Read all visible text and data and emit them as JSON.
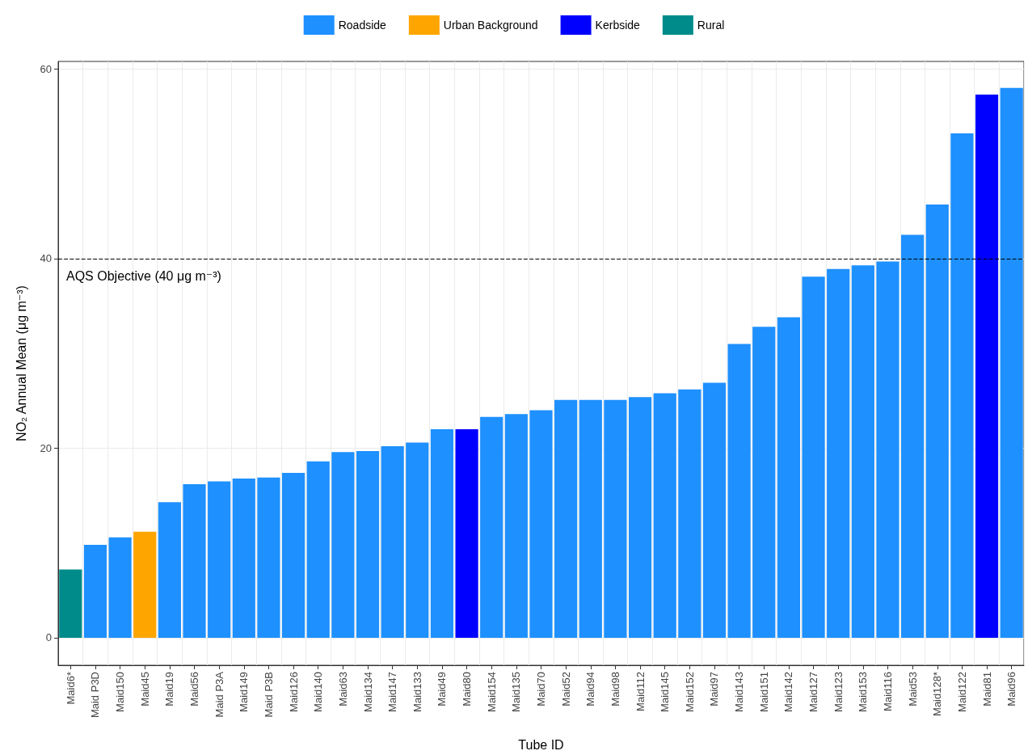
{
  "chart_data": {
    "type": "bar",
    "xlabel": "Tube ID",
    "ylabel": "NO₂ Annual Mean (μg m⁻³)",
    "categories": [
      "Maid6*",
      "Maid P3D",
      "Maid150",
      "Maid45",
      "Maid19",
      "Maid56",
      "Maid P3A",
      "Maid149",
      "Maid P3B",
      "Maid126",
      "Maid140",
      "Maid63",
      "Maid134",
      "Maid147",
      "Maid133",
      "Maid49",
      "Maid80",
      "Maid154",
      "Maid135",
      "Maid70",
      "Maid52",
      "Maid94",
      "Maid98",
      "Maid112",
      "Maid145",
      "Maid152",
      "Maid97",
      "Maid143",
      "Maid151",
      "Maid142",
      "Maid127",
      "Maid123",
      "Maid153",
      "Maid116",
      "Maid53",
      "Maid128*",
      "Maid122",
      "Maid81",
      "Maid96"
    ],
    "series": [
      {
        "name": "Roadside",
        "color": "#1e90ff",
        "values": [
          null,
          9.8,
          10.6,
          null,
          14.3,
          16.2,
          16.5,
          16.8,
          16.9,
          17.4,
          18.6,
          19.6,
          19.7,
          20.2,
          20.6,
          22.0,
          null,
          23.3,
          23.6,
          24.0,
          25.1,
          25.1,
          25.1,
          25.4,
          25.8,
          26.2,
          26.9,
          31.0,
          32.8,
          33.8,
          38.1,
          38.9,
          39.3,
          39.7,
          42.5,
          45.7,
          53.2,
          null,
          58.0
        ]
      },
      {
        "name": "Urban Background",
        "color": "#ffa500",
        "values": [
          null,
          null,
          null,
          11.2,
          null,
          null,
          null,
          null,
          null,
          null,
          null,
          null,
          null,
          null,
          null,
          null,
          null,
          null,
          null,
          null,
          null,
          null,
          null,
          null,
          null,
          null,
          null,
          null,
          null,
          null,
          null,
          null,
          null,
          null,
          null,
          null,
          null,
          null,
          null
        ]
      },
      {
        "name": "Kerbside",
        "color": "#0000ff",
        "values": [
          null,
          null,
          null,
          null,
          null,
          null,
          null,
          null,
          null,
          null,
          null,
          null,
          null,
          null,
          null,
          null,
          22.0,
          null,
          null,
          null,
          null,
          null,
          null,
          null,
          null,
          null,
          null,
          null,
          null,
          null,
          null,
          null,
          null,
          null,
          null,
          null,
          null,
          57.3,
          null
        ]
      },
      {
        "name": "Rural",
        "color": "#008b8b",
        "values": [
          7.2,
          null,
          null,
          null,
          null,
          null,
          null,
          null,
          null,
          null,
          null,
          null,
          null,
          null,
          null,
          null,
          null,
          null,
          null,
          null,
          null,
          null,
          null,
          null,
          null,
          null,
          null,
          null,
          null,
          null,
          null,
          null,
          null,
          null,
          null,
          null,
          null,
          null,
          null
        ]
      }
    ],
    "ylim": [
      -2.9,
      60.8
    ],
    "yticks": [
      0,
      20,
      40,
      60
    ],
    "grid": true,
    "legend": "top",
    "ref_lines": [
      {
        "axis": "y",
        "value": 40,
        "label": "AQS Objective (40 μg m⁻³)",
        "color": "#000000",
        "line_style": "dashed"
      }
    ]
  }
}
